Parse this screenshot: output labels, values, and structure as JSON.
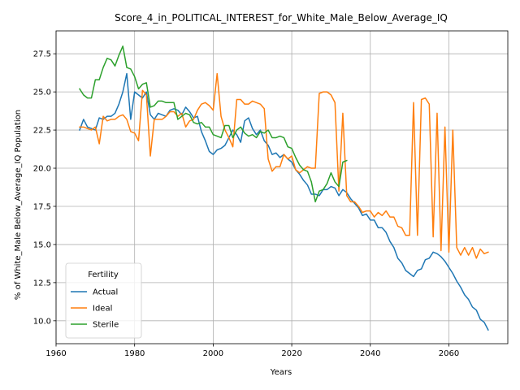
{
  "chart_data": {
    "type": "line",
    "title": "Score_4_in_POLITICAL_INTEREST_for_White_Male_Below_Average_IQ",
    "xlabel": "Years",
    "ylabel": "% of White_Male Below_Average_IQ Population",
    "xlim": [
      1960,
      2075
    ],
    "ylim": [
      8.5,
      29.0
    ],
    "xticks": [
      1960,
      1980,
      2000,
      2020,
      2040,
      2060
    ],
    "yticks": [
      10.0,
      12.5,
      15.0,
      17.5,
      20.0,
      22.5,
      25.0,
      27.5
    ],
    "grid": true,
    "legend": {
      "title": "Fertility",
      "placement": "lower-left"
    },
    "series": [
      {
        "name": "Actual",
        "color": "#1f77b4",
        "points": [
          [
            1966,
            22.5
          ],
          [
            1967,
            23.2
          ],
          [
            1968,
            22.7
          ],
          [
            1969,
            22.6
          ],
          [
            1970,
            22.5
          ],
          [
            1971,
            23.3
          ],
          [
            1972,
            23.2
          ],
          [
            1973,
            23.4
          ],
          [
            1974,
            23.4
          ],
          [
            1975,
            23.6
          ],
          [
            1976,
            24.2
          ],
          [
            1977,
            25.0
          ],
          [
            1978,
            26.2
          ],
          [
            1979,
            23.2
          ],
          [
            1980,
            25.0
          ],
          [
            1981,
            24.8
          ],
          [
            1982,
            24.6
          ],
          [
            1983,
            25.0
          ],
          [
            1984,
            23.5
          ],
          [
            1985,
            23.2
          ],
          [
            1986,
            23.6
          ],
          [
            1987,
            23.5
          ],
          [
            1988,
            23.4
          ],
          [
            1989,
            23.8
          ],
          [
            1990,
            23.9
          ],
          [
            1991,
            23.8
          ],
          [
            1992,
            23.5
          ],
          [
            1993,
            24.0
          ],
          [
            1994,
            23.7
          ],
          [
            1995,
            23.3
          ],
          [
            1996,
            23.4
          ],
          [
            1997,
            22.4
          ],
          [
            1998,
            21.8
          ],
          [
            1999,
            21.1
          ],
          [
            2000,
            20.9
          ],
          [
            2001,
            21.2
          ],
          [
            2002,
            21.3
          ],
          [
            2003,
            21.5
          ],
          [
            2004,
            22.0
          ],
          [
            2005,
            22.5
          ],
          [
            2006,
            22.2
          ],
          [
            2007,
            21.7
          ],
          [
            2008,
            23.1
          ],
          [
            2009,
            23.3
          ],
          [
            2010,
            22.6
          ],
          [
            2011,
            22.2
          ],
          [
            2012,
            22.5
          ],
          [
            2013,
            21.8
          ],
          [
            2014,
            21.5
          ],
          [
            2015,
            20.9
          ],
          [
            2016,
            21.0
          ],
          [
            2017,
            20.7
          ],
          [
            2018,
            20.9
          ],
          [
            2019,
            20.6
          ],
          [
            2020,
            20.4
          ],
          [
            2021,
            19.9
          ],
          [
            2022,
            19.6
          ],
          [
            2023,
            19.2
          ],
          [
            2024,
            18.9
          ],
          [
            2025,
            18.3
          ],
          [
            2026,
            18.3
          ],
          [
            2027,
            18.2
          ],
          [
            2028,
            18.6
          ],
          [
            2029,
            18.6
          ],
          [
            2030,
            18.8
          ],
          [
            2031,
            18.7
          ],
          [
            2032,
            18.2
          ],
          [
            2033,
            18.6
          ],
          [
            2034,
            18.4
          ],
          [
            2035,
            18.0
          ],
          [
            2036,
            17.7
          ],
          [
            2037,
            17.4
          ],
          [
            2038,
            16.9
          ],
          [
            2039,
            17.0
          ],
          [
            2040,
            16.6
          ],
          [
            2041,
            16.6
          ],
          [
            2042,
            16.1
          ],
          [
            2043,
            16.1
          ],
          [
            2044,
            15.8
          ],
          [
            2045,
            15.2
          ],
          [
            2046,
            14.8
          ],
          [
            2047,
            14.1
          ],
          [
            2048,
            13.8
          ],
          [
            2049,
            13.3
          ],
          [
            2050,
            13.1
          ],
          [
            2051,
            12.9
          ],
          [
            2052,
            13.3
          ],
          [
            2053,
            13.4
          ],
          [
            2054,
            14.0
          ],
          [
            2055,
            14.1
          ],
          [
            2056,
            14.5
          ],
          [
            2057,
            14.4
          ],
          [
            2058,
            14.2
          ],
          [
            2059,
            13.9
          ],
          [
            2060,
            13.5
          ],
          [
            2061,
            13.1
          ],
          [
            2062,
            12.6
          ],
          [
            2063,
            12.2
          ],
          [
            2064,
            11.7
          ],
          [
            2065,
            11.4
          ],
          [
            2066,
            10.9
          ],
          [
            2067,
            10.7
          ],
          [
            2068,
            10.1
          ],
          [
            2069,
            9.9
          ],
          [
            2070,
            9.4
          ]
        ]
      },
      {
        "name": "Ideal",
        "color": "#ff7f0e",
        "points": [
          [
            1966,
            22.7
          ],
          [
            1967,
            22.7
          ],
          [
            1968,
            22.6
          ],
          [
            1969,
            22.5
          ],
          [
            1970,
            22.7
          ],
          [
            1971,
            21.6
          ],
          [
            1972,
            23.4
          ],
          [
            1973,
            23.1
          ],
          [
            1974,
            23.2
          ],
          [
            1975,
            23.2
          ],
          [
            1976,
            23.4
          ],
          [
            1977,
            23.5
          ],
          [
            1978,
            23.2
          ],
          [
            1979,
            22.4
          ],
          [
            1980,
            22.3
          ],
          [
            1981,
            21.8
          ],
          [
            1982,
            25.1
          ],
          [
            1983,
            24.8
          ],
          [
            1984,
            20.8
          ],
          [
            1985,
            23.2
          ],
          [
            1986,
            23.2
          ],
          [
            1987,
            23.2
          ],
          [
            1988,
            23.4
          ],
          [
            1989,
            23.7
          ],
          [
            1990,
            23.7
          ],
          [
            1991,
            23.4
          ],
          [
            1992,
            23.6
          ],
          [
            1993,
            22.7
          ],
          [
            1994,
            23.1
          ],
          [
            1995,
            23.2
          ],
          [
            1996,
            23.8
          ],
          [
            1997,
            24.2
          ],
          [
            1998,
            24.3
          ],
          [
            1999,
            24.1
          ],
          [
            2000,
            23.8
          ],
          [
            2001,
            26.2
          ],
          [
            2002,
            23.4
          ],
          [
            2003,
            22.5
          ],
          [
            2004,
            22.0
          ],
          [
            2005,
            21.4
          ],
          [
            2006,
            24.5
          ],
          [
            2007,
            24.5
          ],
          [
            2008,
            24.2
          ],
          [
            2009,
            24.2
          ],
          [
            2010,
            24.4
          ],
          [
            2011,
            24.3
          ],
          [
            2012,
            24.2
          ],
          [
            2013,
            23.9
          ],
          [
            2014,
            20.6
          ],
          [
            2015,
            19.8
          ],
          [
            2016,
            20.1
          ],
          [
            2017,
            20.1
          ],
          [
            2018,
            20.9
          ],
          [
            2019,
            20.6
          ],
          [
            2020,
            20.8
          ],
          [
            2021,
            19.9
          ],
          [
            2022,
            19.7
          ],
          [
            2023,
            19.9
          ],
          [
            2024,
            20.1
          ],
          [
            2025,
            20.0
          ],
          [
            2026,
            20.0
          ],
          [
            2027,
            24.9
          ],
          [
            2028,
            25.0
          ],
          [
            2029,
            25.0
          ],
          [
            2030,
            24.8
          ],
          [
            2031,
            24.3
          ],
          [
            2032,
            18.5
          ],
          [
            2033,
            23.6
          ],
          [
            2034,
            18.2
          ],
          [
            2035,
            17.8
          ],
          [
            2036,
            17.8
          ],
          [
            2037,
            17.5
          ],
          [
            2038,
            17.1
          ],
          [
            2039,
            17.2
          ],
          [
            2040,
            17.2
          ],
          [
            2041,
            16.8
          ],
          [
            2042,
            17.1
          ],
          [
            2043,
            16.9
          ],
          [
            2044,
            17.2
          ],
          [
            2045,
            16.8
          ],
          [
            2046,
            16.8
          ],
          [
            2047,
            16.2
          ],
          [
            2048,
            16.1
          ],
          [
            2049,
            15.6
          ],
          [
            2050,
            15.6
          ],
          [
            2051,
            24.3
          ],
          [
            2052,
            15.6
          ],
          [
            2053,
            24.5
          ],
          [
            2054,
            24.6
          ],
          [
            2055,
            24.2
          ],
          [
            2056,
            15.5
          ],
          [
            2057,
            23.6
          ],
          [
            2058,
            14.6
          ],
          [
            2059,
            22.7
          ],
          [
            2060,
            14.5
          ],
          [
            2061,
            22.5
          ],
          [
            2062,
            14.8
          ],
          [
            2063,
            14.3
          ],
          [
            2064,
            14.8
          ],
          [
            2065,
            14.3
          ],
          [
            2066,
            14.8
          ],
          [
            2067,
            14.1
          ],
          [
            2068,
            14.7
          ],
          [
            2069,
            14.4
          ],
          [
            2070,
            14.5
          ]
        ]
      },
      {
        "name": "Sterile",
        "color": "#2ca02c",
        "points": [
          [
            1966,
            25.2
          ],
          [
            1967,
            24.8
          ],
          [
            1968,
            24.6
          ],
          [
            1969,
            24.6
          ],
          [
            1970,
            25.8
          ],
          [
            1971,
            25.8
          ],
          [
            1972,
            26.6
          ],
          [
            1973,
            27.2
          ],
          [
            1974,
            27.1
          ],
          [
            1975,
            26.7
          ],
          [
            1976,
            27.4
          ],
          [
            1977,
            28.0
          ],
          [
            1978,
            26.6
          ],
          [
            1979,
            26.5
          ],
          [
            1980,
            26.0
          ],
          [
            1981,
            25.2
          ],
          [
            1982,
            25.5
          ],
          [
            1983,
            25.6
          ],
          [
            1984,
            24.0
          ],
          [
            1985,
            24.1
          ],
          [
            1986,
            24.4
          ],
          [
            1987,
            24.4
          ],
          [
            1988,
            24.3
          ],
          [
            1989,
            24.3
          ],
          [
            1990,
            24.3
          ],
          [
            1991,
            23.2
          ],
          [
            1992,
            23.4
          ],
          [
            1993,
            23.6
          ],
          [
            1994,
            23.5
          ],
          [
            1995,
            23.0
          ],
          [
            1996,
            22.9
          ],
          [
            1997,
            23.0
          ],
          [
            1998,
            22.7
          ],
          [
            1999,
            22.7
          ],
          [
            2000,
            22.2
          ],
          [
            2001,
            22.1
          ],
          [
            2002,
            22.0
          ],
          [
            2003,
            22.8
          ],
          [
            2004,
            22.8
          ],
          [
            2005,
            22.0
          ],
          [
            2006,
            22.5
          ],
          [
            2007,
            22.7
          ],
          [
            2008,
            22.3
          ],
          [
            2009,
            22.1
          ],
          [
            2010,
            22.2
          ],
          [
            2011,
            22.0
          ],
          [
            2012,
            22.4
          ],
          [
            2013,
            22.3
          ],
          [
            2014,
            22.5
          ],
          [
            2015,
            22.0
          ],
          [
            2016,
            22.0
          ],
          [
            2017,
            22.1
          ],
          [
            2018,
            22.0
          ],
          [
            2019,
            21.4
          ],
          [
            2020,
            21.3
          ],
          [
            2021,
            20.7
          ],
          [
            2022,
            20.2
          ],
          [
            2023,
            19.9
          ],
          [
            2024,
            19.8
          ],
          [
            2025,
            19.1
          ],
          [
            2026,
            17.8
          ],
          [
            2027,
            18.5
          ],
          [
            2028,
            18.6
          ],
          [
            2029,
            19.0
          ],
          [
            2030,
            19.7
          ],
          [
            2031,
            19.1
          ],
          [
            2032,
            18.8
          ],
          [
            2033,
            20.4
          ],
          [
            2034,
            20.5
          ]
        ]
      }
    ]
  }
}
